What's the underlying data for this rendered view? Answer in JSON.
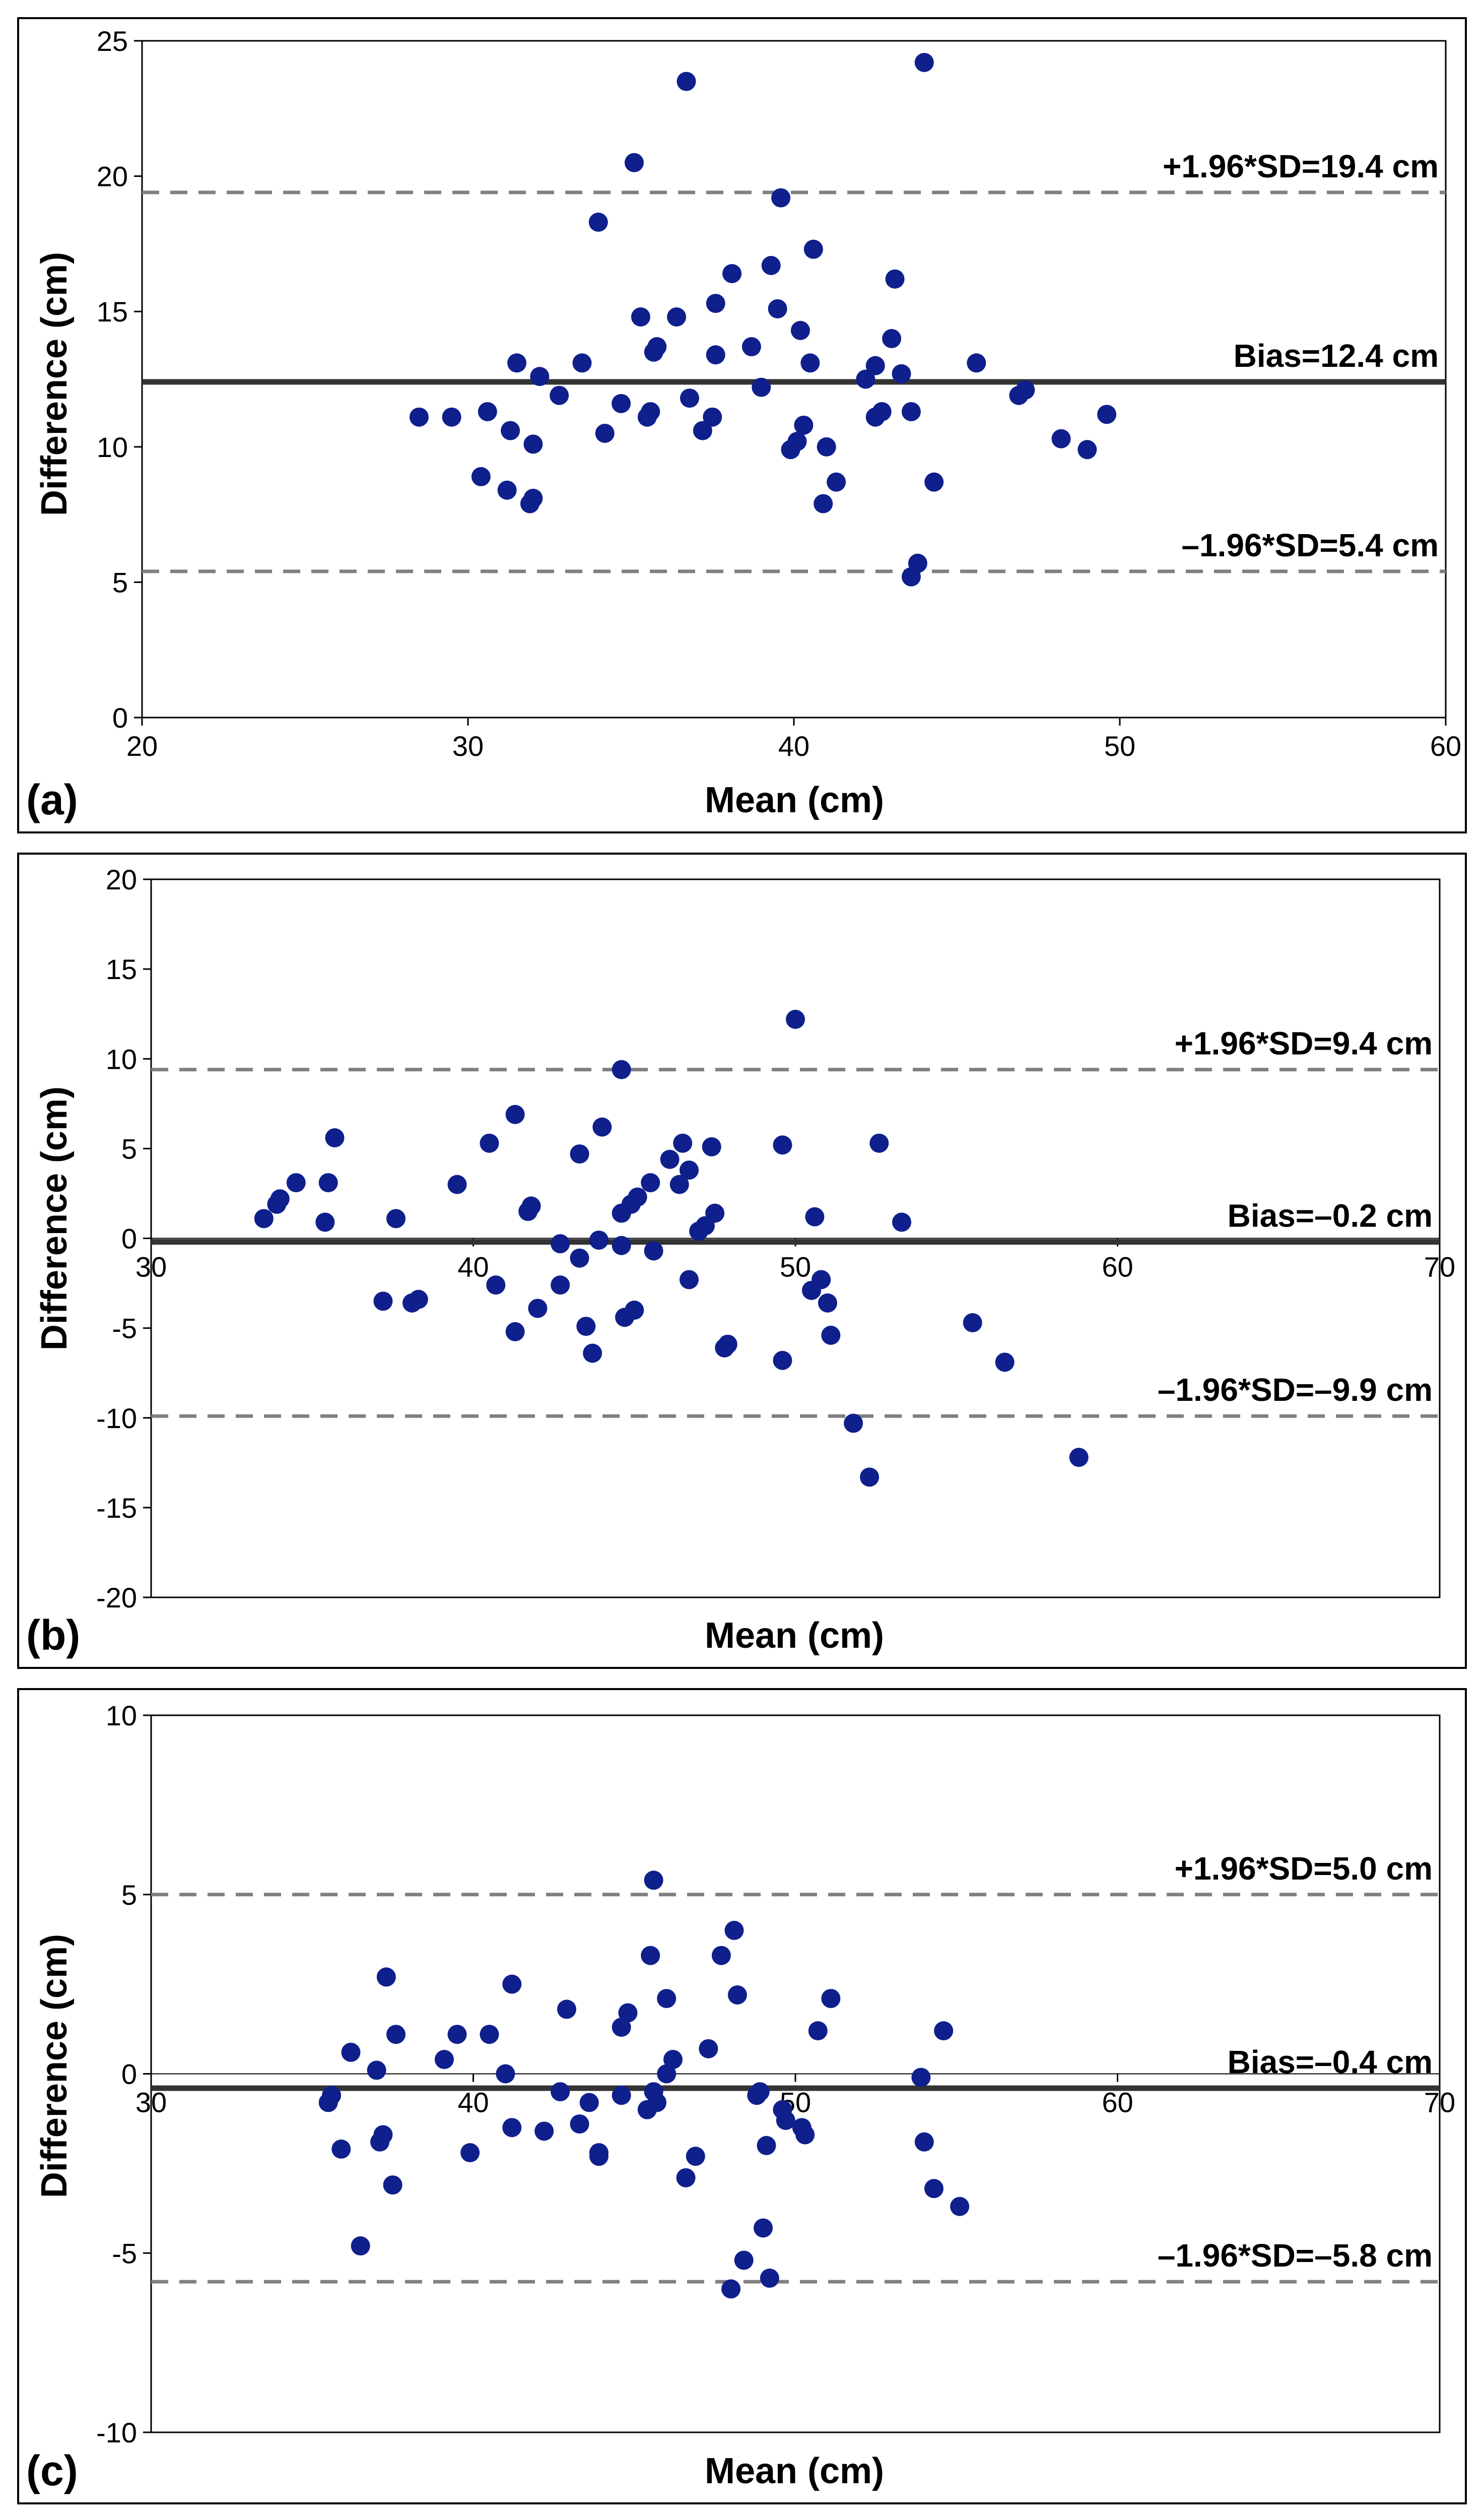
{
  "chart_data": [
    {
      "type": "scatter",
      "panel_label": "(a)",
      "xlabel": "Mean (cm)",
      "ylabel": "Difference (cm)",
      "xlim": [
        20,
        60
      ],
      "ylim": [
        0,
        25
      ],
      "xticks": [
        "20",
        "30",
        "40",
        "50",
        "60"
      ],
      "yticks": [
        "0",
        "5",
        "10",
        "15",
        "20",
        "25"
      ],
      "reference_lines": [
        {
          "label": "+1.96*SD=19.4 cm",
          "value": 19.4,
          "style": "dashed"
        },
        {
          "label": "Bias=12.4 cm",
          "value": 12.4,
          "style": "solid"
        },
        {
          "label": "–1.96*SD=5.4 cm",
          "value": 5.4,
          "style": "dashed"
        }
      ],
      "points": [
        [
          28.5,
          11.1
        ],
        [
          29.5,
          11.1
        ],
        [
          30.4,
          8.9
        ],
        [
          30.6,
          11.3
        ],
        [
          31.2,
          8.4
        ],
        [
          31.3,
          10.6
        ],
        [
          31.5,
          13.1
        ],
        [
          31.9,
          7.9
        ],
        [
          32.0,
          8.1
        ],
        [
          32.0,
          10.1
        ],
        [
          32.2,
          12.6
        ],
        [
          32.8,
          11.9
        ],
        [
          33.5,
          13.1
        ],
        [
          34.0,
          18.3
        ],
        [
          34.2,
          10.5
        ],
        [
          34.7,
          11.6
        ],
        [
          35.1,
          20.5
        ],
        [
          35.3,
          14.8
        ],
        [
          35.5,
          11.1
        ],
        [
          35.6,
          11.3
        ],
        [
          35.7,
          13.5
        ],
        [
          35.8,
          13.7
        ],
        [
          36.4,
          14.8
        ],
        [
          36.7,
          23.5
        ],
        [
          36.8,
          11.8
        ],
        [
          37.2,
          10.6
        ],
        [
          37.5,
          11.1
        ],
        [
          37.6,
          13.4
        ],
        [
          37.6,
          15.3
        ],
        [
          38.1,
          16.4
        ],
        [
          38.7,
          13.7
        ],
        [
          39.0,
          12.2
        ],
        [
          39.3,
          16.7
        ],
        [
          39.5,
          15.1
        ],
        [
          39.6,
          19.2
        ],
        [
          39.9,
          9.9
        ],
        [
          40.1,
          10.2
        ],
        [
          40.2,
          14.3
        ],
        [
          40.3,
          10.8
        ],
        [
          40.6,
          17.3
        ],
        [
          40.5,
          13.1
        ],
        [
          40.9,
          7.9
        ],
        [
          41.0,
          10.0
        ],
        [
          41.3,
          8.7
        ],
        [
          42.2,
          12.5
        ],
        [
          42.5,
          11.1
        ],
        [
          42.5,
          13.0
        ],
        [
          42.7,
          11.3
        ],
        [
          43.0,
          14.0
        ],
        [
          43.1,
          16.2
        ],
        [
          43.3,
          12.7
        ],
        [
          43.6,
          5.2
        ],
        [
          43.6,
          11.3
        ],
        [
          43.8,
          5.7
        ],
        [
          44.0,
          24.2
        ],
        [
          44.3,
          8.7
        ],
        [
          45.6,
          13.1
        ],
        [
          46.9,
          11.9
        ],
        [
          47.1,
          12.1
        ],
        [
          48.2,
          10.3
        ],
        [
          49.0,
          9.9
        ],
        [
          49.6,
          11.2
        ]
      ]
    },
    {
      "type": "scatter",
      "panel_label": "(b)",
      "xlabel": "Mean (cm)",
      "ylabel": "Difference (cm)",
      "xlim": [
        30,
        70
      ],
      "ylim": [
        -20,
        20
      ],
      "xticks": [
        "30",
        "40",
        "50",
        "60",
        "70"
      ],
      "yticks": [
        "-20",
        "-15",
        "-10",
        "-5",
        "0",
        "5",
        "10",
        "15",
        "20"
      ],
      "reference_lines": [
        {
          "label": "+1.96*SD=9.4 cm",
          "value": 9.4,
          "style": "dashed"
        },
        {
          "label": "Bias=–0.2 cm",
          "value": -0.2,
          "style": "solid"
        },
        {
          "label": "–1.96*SD=–9.9 cm",
          "value": -9.9,
          "style": "dashed"
        }
      ],
      "points": [
        [
          33.5,
          1.1
        ],
        [
          33.9,
          1.9
        ],
        [
          34.0,
          2.2
        ],
        [
          34.5,
          3.1
        ],
        [
          35.4,
          0.9
        ],
        [
          35.5,
          3.1
        ],
        [
          35.7,
          5.6
        ],
        [
          37.2,
          -3.5
        ],
        [
          37.6,
          1.1
        ],
        [
          38.1,
          -3.6
        ],
        [
          38.3,
          -3.4
        ],
        [
          39.5,
          3.0
        ],
        [
          40.5,
          5.3
        ],
        [
          40.7,
          -2.6
        ],
        [
          41.3,
          6.9
        ],
        [
          41.3,
          -5.2
        ],
        [
          41.7,
          1.5
        ],
        [
          41.8,
          1.8
        ],
        [
          42.0,
          -3.9
        ],
        [
          42.7,
          -2.6
        ],
        [
          42.7,
          -0.3
        ],
        [
          43.3,
          4.7
        ],
        [
          43.3,
          -1.1
        ],
        [
          43.5,
          -4.9
        ],
        [
          43.7,
          -6.4
        ],
        [
          43.9,
          -0.1
        ],
        [
          44.0,
          6.2
        ],
        [
          44.6,
          9.4
        ],
        [
          44.6,
          1.4
        ],
        [
          44.6,
          -0.4
        ],
        [
          44.7,
          -4.4
        ],
        [
          44.9,
          1.9
        ],
        [
          45.0,
          -4.0
        ],
        [
          45.1,
          2.3
        ],
        [
          45.5,
          3.1
        ],
        [
          45.6,
          -0.7
        ],
        [
          46.1,
          4.4
        ],
        [
          46.4,
          3.0
        ],
        [
          46.5,
          5.3
        ],
        [
          46.7,
          3.8
        ],
        [
          46.7,
          -2.3
        ],
        [
          47.0,
          0.4
        ],
        [
          47.2,
          0.7
        ],
        [
          47.4,
          5.1
        ],
        [
          47.5,
          1.4
        ],
        [
          47.8,
          -6.1
        ],
        [
          47.9,
          -5.9
        ],
        [
          49.6,
          5.2
        ],
        [
          49.6,
          -6.8
        ],
        [
          50.0,
          12.2
        ],
        [
          50.5,
          -2.9
        ],
        [
          50.6,
          1.2
        ],
        [
          50.8,
          -2.3
        ],
        [
          51.0,
          -3.6
        ],
        [
          51.1,
          -5.4
        ],
        [
          51.8,
          -10.3
        ],
        [
          52.3,
          -13.3
        ],
        [
          52.6,
          5.3
        ],
        [
          53.3,
          0.9
        ],
        [
          55.5,
          -4.7
        ],
        [
          56.5,
          -6.9
        ],
        [
          58.8,
          -12.2
        ]
      ]
    },
    {
      "type": "scatter",
      "panel_label": "(c)",
      "xlabel": "Mean (cm)",
      "ylabel": "Difference (cm)",
      "xlim": [
        30,
        70
      ],
      "ylim": [
        -10,
        10
      ],
      "xticks": [
        "30",
        "40",
        "50",
        "60",
        "70"
      ],
      "yticks": [
        "-10",
        "-5",
        "0",
        "5",
        "10"
      ],
      "reference_lines": [
        {
          "label": "+1.96*SD=5.0 cm",
          "value": 5.0,
          "style": "dashed"
        },
        {
          "label": "Bias=–0.4 cm",
          "value": -0.4,
          "style": "solid"
        },
        {
          "label": "–1.96*SD=–5.8 cm",
          "value": -5.8,
          "style": "dashed"
        }
      ],
      "points": [
        [
          35.5,
          -0.8
        ],
        [
          35.6,
          -0.6
        ],
        [
          35.9,
          -2.1
        ],
        [
          36.2,
          0.6
        ],
        [
          36.5,
          -4.8
        ],
        [
          37.0,
          0.1
        ],
        [
          37.1,
          -1.9
        ],
        [
          37.2,
          -1.7
        ],
        [
          37.3,
          2.7
        ],
        [
          37.5,
          -3.1
        ],
        [
          37.6,
          1.1
        ],
        [
          39.1,
          0.4
        ],
        [
          39.5,
          1.1
        ],
        [
          39.9,
          -2.2
        ],
        [
          40.5,
          1.1
        ],
        [
          41.0,
          0.0
        ],
        [
          41.2,
          2.5
        ],
        [
          41.2,
          -1.5
        ],
        [
          42.2,
          -1.6
        ],
        [
          42.7,
          -0.5
        ],
        [
          42.9,
          1.8
        ],
        [
          43.3,
          -1.4
        ],
        [
          43.6,
          -0.8
        ],
        [
          43.9,
          -2.2
        ],
        [
          43.9,
          -2.3
        ],
        [
          44.6,
          1.3
        ],
        [
          44.6,
          -0.6
        ],
        [
          44.8,
          1.7
        ],
        [
          45.4,
          -1.0
        ],
        [
          45.5,
          3.3
        ],
        [
          45.6,
          -0.5
        ],
        [
          45.6,
          5.4
        ],
        [
          45.7,
          -0.8
        ],
        [
          46.0,
          0.0
        ],
        [
          46.0,
          2.1
        ],
        [
          46.2,
          0.4
        ],
        [
          46.6,
          -2.9
        ],
        [
          46.9,
          -2.3
        ],
        [
          47.3,
          0.7
        ],
        [
          47.7,
          3.3
        ],
        [
          48.0,
          -6.0
        ],
        [
          48.1,
          4.0
        ],
        [
          48.2,
          2.2
        ],
        [
          48.4,
          -5.2
        ],
        [
          48.8,
          -0.6
        ],
        [
          48.9,
          -0.5
        ],
        [
          49.0,
          -4.3
        ],
        [
          49.1,
          -2.0
        ],
        [
          49.2,
          -5.7
        ],
        [
          49.6,
          -1.0
        ],
        [
          49.7,
          -1.3
        ],
        [
          50.2,
          -1.5
        ],
        [
          50.3,
          -1.7
        ],
        [
          50.7,
          1.2
        ],
        [
          51.1,
          2.1
        ],
        [
          53.9,
          -0.1
        ],
        [
          54.0,
          -1.9
        ],
        [
          54.3,
          -3.2
        ],
        [
          54.6,
          1.2
        ],
        [
          55.1,
          -3.7
        ]
      ]
    }
  ]
}
